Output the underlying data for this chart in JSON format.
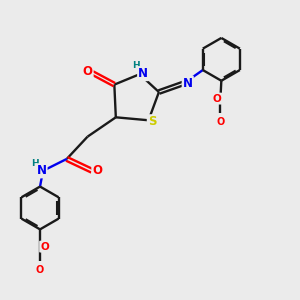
{
  "background_color": "#ebebeb",
  "bond_color": "#1a1a1a",
  "atom_colors": {
    "O": "#ff0000",
    "N": "#0000ee",
    "S": "#cccc00",
    "H_color": "#008080",
    "C": "#1a1a1a"
  },
  "figsize": [
    3.0,
    3.0
  ],
  "dpi": 100,
  "xlim": [
    0,
    10
  ],
  "ylim": [
    0,
    10
  ]
}
